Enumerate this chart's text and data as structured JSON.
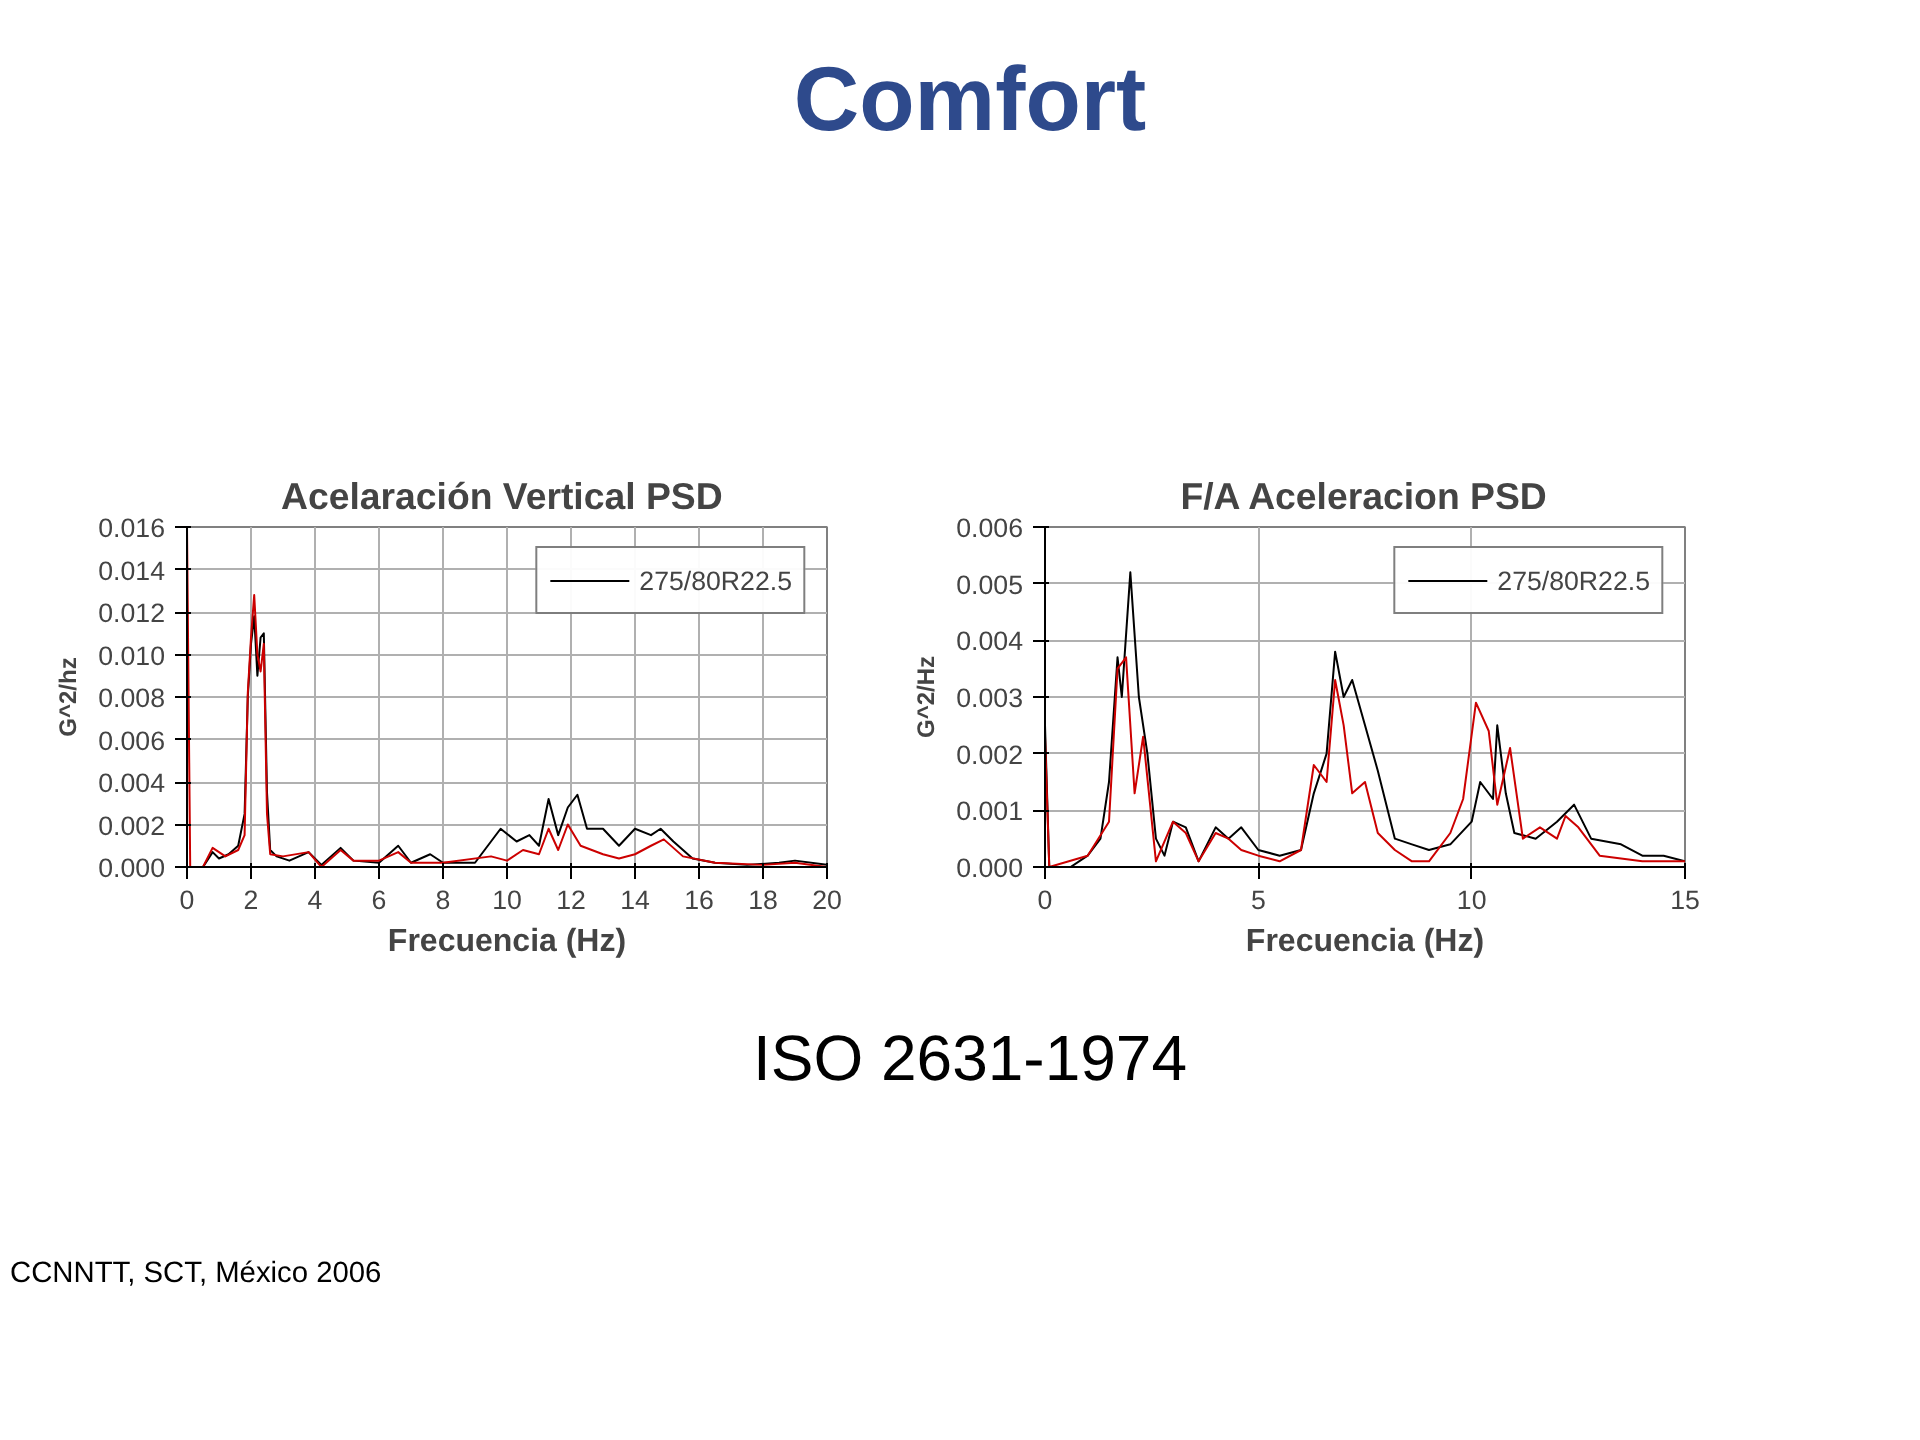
{
  "chart_data": [
    {
      "type": "line",
      "title": "Acelaración Vertical  PSD",
      "xlabel": "Frecuencia (Hz)",
      "ylabel": "G^2/hz",
      "xlim": [
        0,
        20
      ],
      "xticks": [
        0,
        2,
        4,
        6,
        8,
        10,
        12,
        14,
        16,
        18,
        20
      ],
      "ylim": [
        0,
        0.016
      ],
      "yticks": [
        {
          "value": 0,
          "label": "0.000"
        },
        {
          "value": 0.002,
          "label": "0.002"
        },
        {
          "value": 0.004,
          "label": "0.004"
        },
        {
          "value": 0.006,
          "label": "0.006"
        },
        {
          "value": 0.008,
          "label": "0.008"
        },
        {
          "value": 0.01,
          "label": "0.010"
        },
        {
          "value": 0.012,
          "label": "0.012"
        },
        {
          "value": 0.014,
          "label": "0.014"
        },
        {
          "value": 0.016,
          "label": "0.016"
        }
      ],
      "grid": true,
      "legend": "top right",
      "marker": "none",
      "line_style": "solid",
      "series": [
        {
          "name": "275/80R22.5",
          "color": "#000000",
          "x": [
            0,
            0.1,
            0.5,
            0.8,
            1.0,
            1.3,
            1.6,
            1.8,
            1.9,
            2.0,
            2.1,
            2.2,
            2.3,
            2.4,
            2.5,
            2.6,
            2.8,
            3.2,
            3.8,
            4.2,
            4.8,
            5.2,
            6,
            6.6,
            7,
            7.6,
            8,
            9,
            9.5,
            9.8,
            10.3,
            10.7,
            11,
            11.3,
            11.6,
            11.9,
            12.2,
            12.5,
            13,
            13.5,
            14,
            14.5,
            14.8,
            15.2,
            15.8,
            16.5,
            17.5,
            18.5,
            19,
            20
          ],
          "values": [
            0.0,
            0.0,
            0.0,
            0.0007,
            0.0004,
            0.0006,
            0.001,
            0.0025,
            0.008,
            0.0105,
            0.0118,
            0.009,
            0.0108,
            0.011,
            0.0035,
            0.0008,
            0.0005,
            0.0003,
            0.0007,
            0.0001,
            0.0009,
            0.0003,
            0.0002,
            0.001,
            0.0002,
            0.0006,
            0.0002,
            0.0002,
            0.0012,
            0.0018,
            0.0012,
            0.0015,
            0.001,
            0.0032,
            0.0015,
            0.0028,
            0.0034,
            0.0018,
            0.0018,
            0.001,
            0.0018,
            0.0015,
            0.0018,
            0.0012,
            0.0004,
            0.0002,
            0.0001,
            0.0002,
            0.0003,
            0.0001
          ]
        },
        {
          "color": "#cc0000",
          "x": [
            0,
            0.1,
            0.5,
            0.8,
            1.2,
            1.6,
            1.8,
            1.9,
            2.0,
            2.1,
            2.2,
            2.3,
            2.4,
            2.5,
            2.6,
            3,
            3.8,
            4.2,
            4.8,
            5.2,
            6,
            6.6,
            7,
            8,
            9.5,
            10,
            10.5,
            11,
            11.3,
            11.6,
            11.9,
            12.3,
            13,
            13.5,
            14,
            14.5,
            14.9,
            15.5,
            16.5,
            18,
            19,
            20
          ],
          "values": [
            0.016,
            0.0,
            0.0,
            0.0009,
            0.0005,
            0.0008,
            0.0015,
            0.0082,
            0.0108,
            0.0128,
            0.01,
            0.0092,
            0.0105,
            0.0025,
            0.0006,
            0.0005,
            0.0007,
            0.0,
            0.0008,
            0.0003,
            0.0003,
            0.0007,
            0.0002,
            0.0002,
            0.0005,
            0.0003,
            0.0008,
            0.0006,
            0.0018,
            0.0008,
            0.002,
            0.001,
            0.0006,
            0.0004,
            0.0006,
            0.001,
            0.0013,
            0.0005,
            0.0002,
            0.0001,
            0.0002,
            0.0
          ]
        }
      ]
    },
    {
      "type": "line",
      "title": "F/A Aceleracion PSD",
      "xlabel": "Frecuencia (Hz)",
      "ylabel": "G^2/Hz",
      "xlim": [
        0,
        15
      ],
      "xticks": [
        0,
        5,
        10,
        15
      ],
      "ylim": [
        0,
        0.006
      ],
      "yticks": [
        {
          "value": 0,
          "label": "0.000"
        },
        {
          "value": 0.001,
          "label": "0.001"
        },
        {
          "value": 0.002,
          "label": "0.002"
        },
        {
          "value": 0.003,
          "label": "0.003"
        },
        {
          "value": 0.004,
          "label": "0.004"
        },
        {
          "value": 0.005,
          "label": "0.005"
        },
        {
          "value": 0.006,
          "label": "0.006"
        }
      ],
      "grid": true,
      "legend": "top right",
      "marker": "none",
      "line_style": "solid",
      "series": [
        {
          "name": "275/80R22.5",
          "color": "#000000",
          "x": [
            0,
            0.1,
            0.6,
            1.0,
            1.3,
            1.5,
            1.7,
            1.8,
            1.9,
            2.0,
            2.2,
            2.4,
            2.6,
            2.8,
            3.0,
            3.3,
            3.6,
            4.0,
            4.3,
            4.6,
            5,
            5.5,
            6,
            6.3,
            6.6,
            6.8,
            7,
            7.2,
            7.5,
            7.8,
            8.2,
            8.6,
            9,
            9.5,
            10,
            10.2,
            10.5,
            10.6,
            10.8,
            11,
            11.5,
            12,
            12.4,
            12.8,
            13.5,
            14,
            14.5,
            15
          ],
          "values": [
            0.0025,
            0.0,
            0.0,
            0.0002,
            0.0005,
            0.0015,
            0.0037,
            0.003,
            0.0041,
            0.0052,
            0.003,
            0.002,
            0.0005,
            0.0002,
            0.0008,
            0.0007,
            0.0001,
            0.0007,
            0.0005,
            0.0007,
            0.0003,
            0.0002,
            0.0003,
            0.0013,
            0.002,
            0.0038,
            0.003,
            0.0033,
            0.0025,
            0.0017,
            0.0005,
            0.0004,
            0.0003,
            0.0004,
            0.0008,
            0.0015,
            0.0012,
            0.0025,
            0.0013,
            0.0006,
            0.0005,
            0.0008,
            0.0011,
            0.0005,
            0.0004,
            0.0002,
            0.0002,
            0.0001
          ]
        },
        {
          "color": "#cc0000",
          "x": [
            0,
            0.1,
            1.0,
            1.5,
            1.7,
            1.9,
            2.1,
            2.3,
            2.6,
            3.0,
            3.3,
            3.6,
            4.0,
            4.3,
            4.6,
            5,
            5.5,
            6,
            6.3,
            6.6,
            6.8,
            7,
            7.2,
            7.5,
            7.8,
            8.2,
            8.6,
            9,
            9.5,
            9.8,
            10.1,
            10.4,
            10.6,
            10.9,
            11.2,
            11.6,
            12,
            12.2,
            12.5,
            13,
            14,
            15
          ],
          "values": [
            0.0023,
            0.0,
            0.0002,
            0.0008,
            0.0035,
            0.0037,
            0.0013,
            0.0023,
            0.0001,
            0.0008,
            0.0006,
            0.0001,
            0.0006,
            0.0005,
            0.0003,
            0.0002,
            0.0001,
            0.0003,
            0.0018,
            0.0015,
            0.0033,
            0.0025,
            0.0013,
            0.0015,
            0.0006,
            0.0003,
            0.0001,
            0.0001,
            0.0006,
            0.0012,
            0.0029,
            0.0024,
            0.0011,
            0.0021,
            0.0005,
            0.0007,
            0.0005,
            0.0009,
            0.0007,
            0.0002,
            0.0001,
            0.0001
          ]
        }
      ]
    },
    {
      "type": "other",
      "title": "Comfort",
      "annotations": [
        "ISO 2631-1974",
        "CCNNTT, SCT, México 2006"
      ]
    }
  ]
}
